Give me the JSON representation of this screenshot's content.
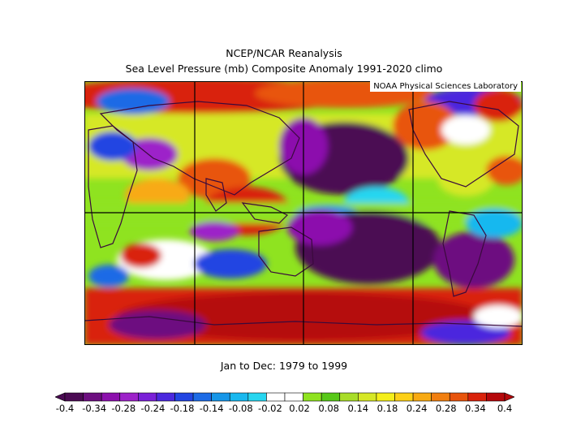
{
  "header": {
    "title": "NCEP/NCAR Reanalysis",
    "subtitle": "Sea Level Pressure (mb) Composite Anomaly 1991-2020 climo"
  },
  "map": {
    "credit": "NOAA Physical Sciences Laboratory",
    "projection": "cylindrical equidistant, Pacific centered",
    "grid_lines": "every 60 degrees longitude, equator"
  },
  "footer": {
    "period": "Jan to Dec: 1979 to 1999"
  },
  "colorbar": {
    "levels": [
      "-0.4",
      "-0.34",
      "-0.28",
      "-0.24",
      "-0.18",
      "-0.14",
      "-0.08",
      "-0.02",
      "0.02",
      "0.08",
      "0.14",
      "0.18",
      "0.24",
      "0.28",
      "0.34",
      "0.4"
    ],
    "colors": [
      "#4b0b53",
      "#6d0f80",
      "#8c10ad",
      "#9d22c9",
      "#7a20d8",
      "#4b28de",
      "#2245e2",
      "#1d6be6",
      "#1696e8",
      "#18b8ef",
      "#27d6f0",
      "#ffffff",
      "#ffffff",
      "#8fe320",
      "#57c818",
      "#a8dd28",
      "#d6e826",
      "#f5ef1a",
      "#fdd017",
      "#f8aa12",
      "#f17f10",
      "#e8540c",
      "#d9220b",
      "#b5070a"
    ],
    "min_arrow": "#4b0b53",
    "max_arrow": "#b5070a"
  }
}
